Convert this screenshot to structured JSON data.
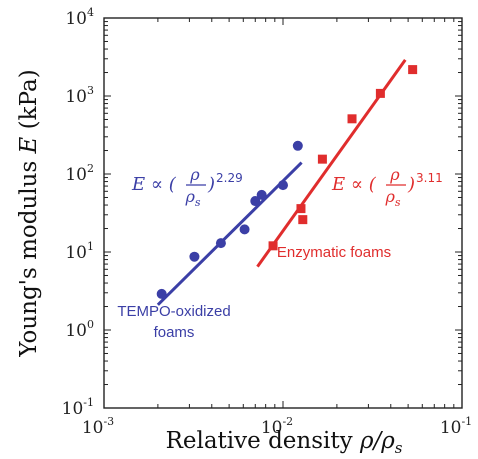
{
  "chart_data": {
    "type": "scatter",
    "xscale": "log",
    "yscale": "log",
    "xlim": [
      0.001,
      0.1
    ],
    "ylim": [
      0.1,
      10000
    ],
    "xticks": [
      {
        "value": 0.001,
        "base": "10",
        "exp": "-3"
      },
      {
        "value": 0.01,
        "base": "10",
        "exp": "-2"
      },
      {
        "value": 0.1,
        "base": "10",
        "exp": "-1"
      }
    ],
    "yticks": [
      {
        "value": 0.1,
        "base": "10",
        "exp": "-1"
      },
      {
        "value": 1,
        "base": "10",
        "exp": "0"
      },
      {
        "value": 10,
        "base": "10",
        "exp": "1"
      },
      {
        "value": 100,
        "base": "10",
        "exp": "2"
      },
      {
        "value": 1000,
        "base": "10",
        "exp": "3"
      },
      {
        "value": 10000,
        "base": "10",
        "exp": "4"
      }
    ],
    "xlabel": {
      "text": "Relative density",
      "math_main": "ρ/ρ",
      "math_sub": "s"
    },
    "ylabel": {
      "text": "Young's modulus",
      "math": "E",
      "unit": "(kPa)"
    },
    "grid": false,
    "series": [
      {
        "name": "TEMPO-oxidized foams",
        "color": "#3b3fa6",
        "marker": "circle",
        "points": [
          [
            0.0021,
            2.9
          ],
          [
            0.0032,
            8.7
          ],
          [
            0.0045,
            13.0
          ],
          [
            0.0061,
            19.5
          ],
          [
            0.007,
            45.0
          ],
          [
            0.0076,
            54.0
          ],
          [
            0.01,
            72.0
          ],
          [
            0.0121,
            230.0
          ]
        ],
        "fit": {
          "x": [
            0.002,
            0.0127
          ],
          "y": [
            2.1,
            140.0
          ]
        },
        "equation": {
          "lhs": "E ∝ (",
          "num": "ρ",
          "den": "ρ",
          "den_sub": "s",
          "rhs": ")",
          "exponent": "2.29"
        }
      },
      {
        "name": "Enzymatic foams",
        "color": "#e02d2d",
        "marker": "square",
        "points": [
          [
            0.0088,
            12.0
          ],
          [
            0.0126,
            36.0
          ],
          [
            0.0129,
            26.0
          ],
          [
            0.0166,
            155.0
          ],
          [
            0.0243,
            510.0
          ],
          [
            0.035,
            1080.0
          ],
          [
            0.053,
            2180.0
          ]
        ],
        "fit": {
          "x": [
            0.0072,
            0.0482
          ],
          "y": [
            6.5,
            2900.0
          ]
        },
        "equation": {
          "lhs": "E ∝ (",
          "num": "ρ",
          "den": "ρ",
          "den_sub": "s",
          "rhs": ")",
          "exponent": "3.11"
        }
      }
    ],
    "annotations": [
      {
        "text": "TEMPO-oxidized",
        "color": "#3b3fa6"
      },
      {
        "text": "foams",
        "color": "#3b3fa6"
      },
      {
        "text": "Enzymatic foams",
        "color": "#e02d2d"
      }
    ]
  }
}
